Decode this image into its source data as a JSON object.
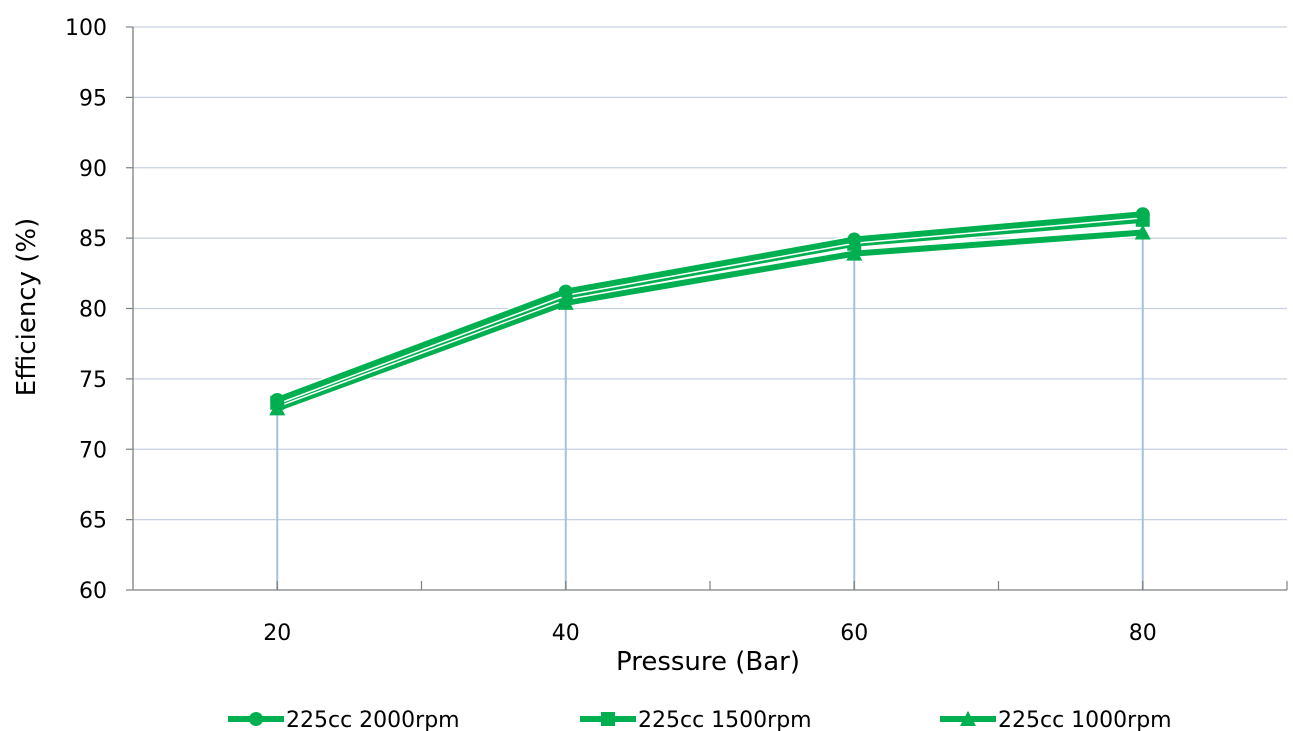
{
  "chart_data": {
    "type": "line",
    "title": "",
    "xlabel": "Pressure (Bar)",
    "ylabel": "Efficiency (%)",
    "x": [
      20,
      40,
      60,
      80
    ],
    "xlim": [
      10,
      90
    ],
    "x_ticks": [
      20,
      40,
      60,
      80
    ],
    "ylim": [
      60,
      100
    ],
    "y_ticks": [
      60,
      65,
      70,
      75,
      80,
      85,
      90,
      95,
      100
    ],
    "grid": "horizontal",
    "drop_lines": true,
    "legend_position": "bottom",
    "series": [
      {
        "name": "225cc 2000rpm",
        "marker": "circle",
        "color": "#00B050",
        "values": [
          73.5,
          81.2,
          84.9,
          86.7
        ]
      },
      {
        "name": "225cc 1500rpm",
        "marker": "square",
        "color": "#00B050",
        "values": [
          73.3,
          80.9,
          84.6,
          86.3
        ]
      },
      {
        "name": "225cc 1000rpm",
        "marker": "triangle",
        "color": "#00B050",
        "values": [
          72.9,
          80.4,
          83.9,
          85.4
        ]
      }
    ],
    "colors": {
      "series": "#00B050",
      "grid": "#C6D0E0",
      "drop_line": "#A7BFE0",
      "axis": "#808080"
    }
  }
}
